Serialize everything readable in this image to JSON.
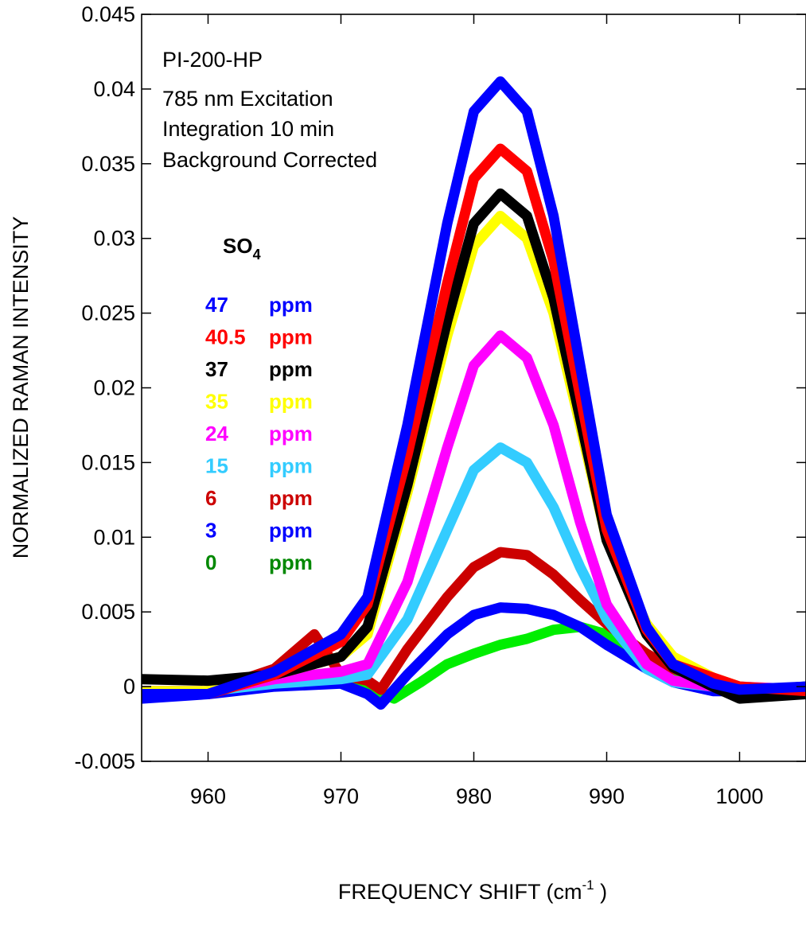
{
  "chart_data": {
    "type": "line",
    "xlabel": "FREQUENCY SHIFT (cm",
    "xlabel_sup": "-1",
    "xlabel_end": " )",
    "ylabel": "NORMALIZED RAMAN INTENSITY",
    "xlim": [
      955,
      1005
    ],
    "ylim": [
      -0.005,
      0.045
    ],
    "xticks": [
      960,
      970,
      980,
      990,
      1000
    ],
    "yticks": [
      -0.005,
      0,
      0.005,
      0.01,
      0.015,
      0.02,
      0.025,
      0.03,
      0.035,
      0.04,
      0.045
    ],
    "ytick_labels": [
      "-0.005",
      "0",
      "0.005",
      "0.01",
      "0.015",
      "0.02",
      "0.025",
      "0.03",
      "0.035",
      "0.04",
      "0.045"
    ],
    "grid": false,
    "annotation_lines": [
      "PI-200-HP",
      "785 nm Excitation",
      "Integration 10 min",
      "Background Corrected"
    ],
    "legend_species": "SO",
    "legend_species_sub": "4",
    "legend_placement": "left",
    "series": [
      {
        "name": "47",
        "unit": "ppm",
        "color": "#0000ff",
        "x": [
          955,
          960,
          965,
          970,
          972,
          975,
          978,
          980,
          982,
          984,
          986,
          988,
          990,
          993,
          995,
          998,
          1000,
          1005
        ],
        "y": [
          -0.0005,
          -0.0005,
          0.001,
          0.0035,
          0.006,
          0.0175,
          0.031,
          0.0385,
          0.0405,
          0.0385,
          0.0315,
          0.0215,
          0.0115,
          0.004,
          0.0015,
          0.0002,
          -0.0002,
          0.0
        ]
      },
      {
        "name": "40.5",
        "unit": "ppm",
        "color": "#ff0000",
        "x": [
          955,
          960,
          965,
          970,
          972,
          975,
          978,
          980,
          982,
          984,
          986,
          988,
          990,
          993,
          995,
          998,
          1000,
          1005
        ],
        "y": [
          -0.0005,
          -0.0005,
          0.0008,
          0.003,
          0.0055,
          0.0155,
          0.027,
          0.034,
          0.036,
          0.0345,
          0.0285,
          0.0195,
          0.0105,
          0.0038,
          0.0015,
          0.0006,
          0.0,
          -0.0003
        ]
      },
      {
        "name": "37",
        "unit": "ppm",
        "color": "#000000",
        "x": [
          955,
          960,
          965,
          970,
          972,
          975,
          978,
          980,
          982,
          984,
          986,
          988,
          990,
          993,
          995,
          998,
          1000,
          1005
        ],
        "y": [
          0.0005,
          0.0004,
          0.0008,
          0.002,
          0.004,
          0.0135,
          0.0245,
          0.031,
          0.033,
          0.0315,
          0.026,
          0.018,
          0.0098,
          0.0035,
          0.0013,
          0.0,
          -0.0008,
          -0.0005
        ]
      },
      {
        "name": "35",
        "unit": "ppm",
        "color": "#ffff00",
        "x": [
          955,
          960,
          965,
          970,
          972,
          975,
          978,
          980,
          982,
          984,
          986,
          988,
          990,
          993,
          995,
          998,
          1000,
          1005
        ],
        "y": [
          -0.0003,
          -0.0003,
          0.0008,
          0.002,
          0.0035,
          0.013,
          0.0235,
          0.0295,
          0.0315,
          0.03,
          0.025,
          0.0175,
          0.0098,
          0.0042,
          0.002,
          0.0006,
          0.0,
          -0.0003
        ]
      },
      {
        "name": "24",
        "unit": "ppm",
        "color": "#ff00ff",
        "x": [
          955,
          960,
          965,
          970,
          972,
          975,
          978,
          980,
          982,
          984,
          986,
          988,
          990,
          993,
          995,
          998,
          1000,
          1005
        ],
        "y": [
          -0.0003,
          -0.0003,
          0.0005,
          0.001,
          0.0015,
          0.007,
          0.016,
          0.0215,
          0.0235,
          0.022,
          0.0175,
          0.011,
          0.0055,
          0.0015,
          0.0004,
          0.0,
          0.0,
          -0.0002
        ]
      },
      {
        "name": "15",
        "unit": "ppm",
        "color": "#33ccff",
        "x": [
          955,
          960,
          965,
          970,
          972,
          975,
          978,
          980,
          982,
          984,
          986,
          988,
          990,
          993,
          995,
          998,
          1000,
          1005
        ],
        "y": [
          -0.0003,
          -0.0003,
          0.0002,
          0.0005,
          0.0008,
          0.0045,
          0.0105,
          0.0145,
          0.016,
          0.015,
          0.012,
          0.008,
          0.0045,
          0.0012,
          0.0003,
          0.0,
          0.0,
          -0.0002
        ]
      },
      {
        "name": "6",
        "unit": "ppm",
        "color": "#cc0000",
        "x": [
          955,
          960,
          965,
          968,
          970,
          972,
          973,
          975,
          978,
          980,
          982,
          984,
          986,
          988,
          990,
          993,
          995,
          998,
          1000,
          1005
        ],
        "y": [
          -0.0003,
          -0.0003,
          0.0012,
          0.0035,
          0.0008,
          0.0004,
          -0.0002,
          0.0025,
          0.006,
          0.008,
          0.009,
          0.0088,
          0.0075,
          0.0058,
          0.0042,
          0.0022,
          0.0012,
          0.0004,
          0.0,
          -0.0003
        ]
      },
      {
        "name": "3",
        "unit": "ppm",
        "color": "#0000ff",
        "x": [
          955,
          960,
          965,
          970,
          972,
          973,
          975,
          978,
          980,
          982,
          984,
          986,
          988,
          990,
          993,
          995,
          998,
          1000,
          1005
        ],
        "y": [
          -0.0008,
          -0.0005,
          0.0,
          0.0002,
          -0.0005,
          -0.0012,
          0.0008,
          0.0035,
          0.0048,
          0.0053,
          0.0052,
          0.0048,
          0.004,
          0.0028,
          0.0012,
          0.0003,
          -0.0003,
          -0.0003,
          0.0
        ]
      },
      {
        "name": "0",
        "unit": "ppm",
        "color": "#008800",
        "line_color": "#00ee00",
        "x": [
          955,
          960,
          965,
          970,
          972,
          974,
          976,
          978,
          980,
          982,
          984,
          986,
          988,
          990,
          992,
          995,
          998,
          1000,
          1005
        ],
        "y": [
          -0.0005,
          -0.0003,
          0.0008,
          0.0005,
          0.0,
          -0.0008,
          0.0003,
          0.0015,
          0.0022,
          0.0028,
          0.0032,
          0.0038,
          0.004,
          0.0035,
          0.0025,
          0.001,
          0.0,
          -0.0003,
          0.0
        ]
      }
    ]
  }
}
